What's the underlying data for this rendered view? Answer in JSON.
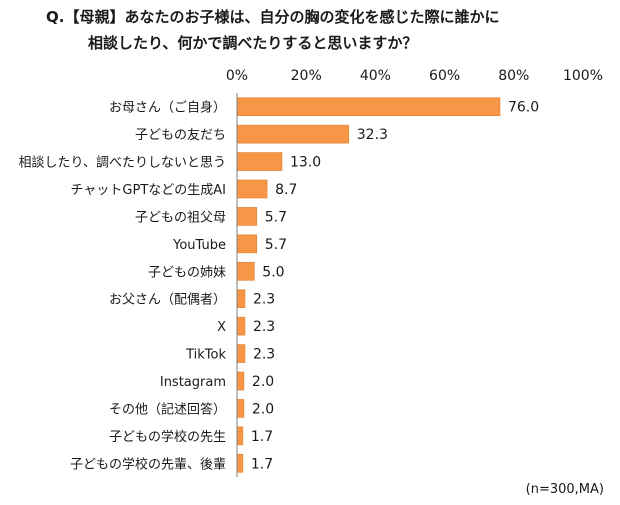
{
  "chart_data": {
    "type": "bar",
    "orientation": "horizontal",
    "title_line1": "Q.【母親】あなたのお子様は、自分の胸の変化を感じた際に誰かに",
    "title_line2": "相談したり、何かで調べたりすると思いますか？",
    "xlim": [
      0,
      100
    ],
    "tick_labels": [
      "0%",
      "20%",
      "40%",
      "60%",
      "80%",
      "100%"
    ],
    "categories": [
      "お母さん（ご自身）",
      "子どもの友だち",
      "相談したり、調べたりしないと思う",
      "チャットGPTなどの生成AI",
      "子どもの祖父母",
      "YouTube",
      "子どもの姉妹",
      "お父さん（配偶者）",
      "X",
      "TikTok",
      "Instagram",
      "その他（記述回答）",
      "子どもの学校の先生",
      "子どもの学校の先輩、後輩"
    ],
    "values": [
      76.0,
      32.3,
      13.0,
      8.7,
      5.7,
      5.7,
      5.0,
      2.3,
      2.3,
      2.3,
      2.0,
      2.0,
      1.7,
      1.7
    ],
    "value_labels": [
      "76.0",
      "32.3",
      "13.0",
      "8.7",
      "5.7",
      "5.7",
      "5.0",
      "2.3",
      "2.3",
      "2.3",
      "2.0",
      "2.0",
      "1.7",
      "1.7"
    ],
    "note": "(n=300,MA)",
    "bar_color": "#F79646",
    "bar_edge": "#E07F2E",
    "grid": false,
    "legend": "none"
  }
}
